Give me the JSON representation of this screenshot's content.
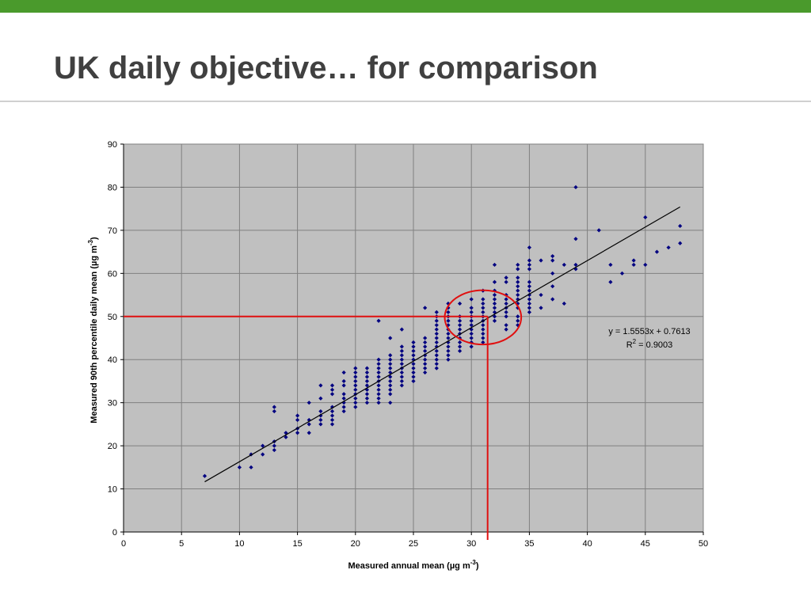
{
  "slide": {
    "title": "UK daily objective… for comparison",
    "accent_color": "#4a9a2c"
  },
  "chart_data": {
    "type": "scatter",
    "title": "",
    "xlabel": "Measured annual mean (µg m",
    "xlabel_sup": "-3",
    "xlabel_end": ")",
    "ylabel": "Measured 90th percentile daily mean (µg m",
    "ylabel_sup": "-3",
    "ylabel_end": ")",
    "xlim": [
      0,
      50
    ],
    "ylim": [
      0,
      90
    ],
    "xticks": [
      0,
      5,
      10,
      15,
      20,
      25,
      30,
      35,
      40,
      45,
      50
    ],
    "yticks": [
      0,
      10,
      20,
      30,
      40,
      50,
      60,
      70,
      80,
      90
    ],
    "grid": true,
    "plot_background": "#c0c0c0",
    "marker_color": "#000080",
    "trendline": {
      "equation": "y = 1.5553x + 0.7613",
      "r2_prefix": "R",
      "r2_sup": "2",
      "r2_suffix": " = 0.9003",
      "slope": 1.5553,
      "intercept": 0.7613,
      "x_range": [
        7,
        48
      ],
      "color": "#000000"
    },
    "annotations": {
      "horizontal_line_y": 50,
      "vertical_line_x": 31.4,
      "circle_center": [
        31,
        49.8
      ],
      "circle_radius_x": 3.3,
      "circle_radius_y": 6.3,
      "color": "#e01010"
    },
    "points": [
      [
        7,
        13
      ],
      [
        10,
        15
      ],
      [
        11,
        15
      ],
      [
        11,
        18
      ],
      [
        12,
        18
      ],
      [
        12,
        20
      ],
      [
        13,
        19
      ],
      [
        13,
        20
      ],
      [
        13,
        21
      ],
      [
        13,
        28
      ],
      [
        13,
        29
      ],
      [
        14,
        22
      ],
      [
        14,
        23
      ],
      [
        15,
        23
      ],
      [
        15,
        24
      ],
      [
        15,
        26
      ],
      [
        15,
        27
      ],
      [
        16,
        23
      ],
      [
        16,
        25
      ],
      [
        16,
        26
      ],
      [
        16,
        30
      ],
      [
        17,
        25
      ],
      [
        17,
        26
      ],
      [
        17,
        27
      ],
      [
        17,
        28
      ],
      [
        17,
        31
      ],
      [
        17,
        34
      ],
      [
        18,
        25
      ],
      [
        18,
        26
      ],
      [
        18,
        27
      ],
      [
        18,
        28
      ],
      [
        18,
        29
      ],
      [
        18,
        32
      ],
      [
        18,
        33
      ],
      [
        18,
        34
      ],
      [
        19,
        28
      ],
      [
        19,
        29
      ],
      [
        19,
        30
      ],
      [
        19,
        31
      ],
      [
        19,
        32
      ],
      [
        19,
        34
      ],
      [
        19,
        35
      ],
      [
        19,
        37
      ],
      [
        20,
        29
      ],
      [
        20,
        30
      ],
      [
        20,
        31
      ],
      [
        20,
        32
      ],
      [
        20,
        33
      ],
      [
        20,
        34
      ],
      [
        20,
        35
      ],
      [
        20,
        36
      ],
      [
        20,
        37
      ],
      [
        20,
        38
      ],
      [
        21,
        30
      ],
      [
        21,
        31
      ],
      [
        21,
        32
      ],
      [
        21,
        33
      ],
      [
        21,
        34
      ],
      [
        21,
        35
      ],
      [
        21,
        36
      ],
      [
        21,
        37
      ],
      [
        21,
        38
      ],
      [
        22,
        30
      ],
      [
        22,
        31
      ],
      [
        22,
        32
      ],
      [
        22,
        33
      ],
      [
        22,
        34
      ],
      [
        22,
        35
      ],
      [
        22,
        36
      ],
      [
        22,
        37
      ],
      [
        22,
        38
      ],
      [
        22,
        39
      ],
      [
        22,
        40
      ],
      [
        22,
        49
      ],
      [
        23,
        30
      ],
      [
        23,
        32
      ],
      [
        23,
        33
      ],
      [
        23,
        34
      ],
      [
        23,
        35
      ],
      [
        23,
        36
      ],
      [
        23,
        37
      ],
      [
        23,
        38
      ],
      [
        23,
        39
      ],
      [
        23,
        40
      ],
      [
        23,
        41
      ],
      [
        23,
        45
      ],
      [
        24,
        34
      ],
      [
        24,
        35
      ],
      [
        24,
        36
      ],
      [
        24,
        37
      ],
      [
        24,
        38
      ],
      [
        24,
        39
      ],
      [
        24,
        40
      ],
      [
        24,
        41
      ],
      [
        24,
        42
      ],
      [
        24,
        43
      ],
      [
        24,
        47
      ],
      [
        25,
        35
      ],
      [
        25,
        36
      ],
      [
        25,
        37
      ],
      [
        25,
        38
      ],
      [
        25,
        39
      ],
      [
        25,
        40
      ],
      [
        25,
        41
      ],
      [
        25,
        42
      ],
      [
        25,
        43
      ],
      [
        25,
        44
      ],
      [
        26,
        37
      ],
      [
        26,
        38
      ],
      [
        26,
        39
      ],
      [
        26,
        40
      ],
      [
        26,
        41
      ],
      [
        26,
        42
      ],
      [
        26,
        43
      ],
      [
        26,
        44
      ],
      [
        26,
        45
      ],
      [
        26,
        52
      ],
      [
        27,
        38
      ],
      [
        27,
        39
      ],
      [
        27,
        40
      ],
      [
        27,
        41
      ],
      [
        27,
        42
      ],
      [
        27,
        43
      ],
      [
        27,
        44
      ],
      [
        27,
        45
      ],
      [
        27,
        46
      ],
      [
        27,
        47
      ],
      [
        27,
        48
      ],
      [
        27,
        49
      ],
      [
        27,
        50
      ],
      [
        27,
        51
      ],
      [
        28,
        40
      ],
      [
        28,
        41
      ],
      [
        28,
        42
      ],
      [
        28,
        43
      ],
      [
        28,
        44
      ],
      [
        28,
        45
      ],
      [
        28,
        46
      ],
      [
        28,
        47
      ],
      [
        28,
        48
      ],
      [
        28,
        49
      ],
      [
        28,
        50
      ],
      [
        28,
        51
      ],
      [
        28,
        52
      ],
      [
        28,
        53
      ],
      [
        29,
        42
      ],
      [
        29,
        43
      ],
      [
        29,
        44
      ],
      [
        29,
        45
      ],
      [
        29,
        46
      ],
      [
        29,
        47
      ],
      [
        29,
        48
      ],
      [
        29,
        49
      ],
      [
        29,
        50
      ],
      [
        29,
        53
      ],
      [
        30,
        43
      ],
      [
        30,
        44
      ],
      [
        30,
        45
      ],
      [
        30,
        46
      ],
      [
        30,
        47
      ],
      [
        30,
        48
      ],
      [
        30,
        49
      ],
      [
        30,
        50
      ],
      [
        30,
        51
      ],
      [
        30,
        52
      ],
      [
        30,
        54
      ],
      [
        31,
        44
      ],
      [
        31,
        45
      ],
      [
        31,
        46
      ],
      [
        31,
        47
      ],
      [
        31,
        48
      ],
      [
        31,
        49
      ],
      [
        31,
        50
      ],
      [
        31,
        51
      ],
      [
        31,
        52
      ],
      [
        31,
        53
      ],
      [
        31,
        54
      ],
      [
        31,
        56
      ],
      [
        32,
        49
      ],
      [
        32,
        50
      ],
      [
        32,
        51
      ],
      [
        32,
        52
      ],
      [
        32,
        53
      ],
      [
        32,
        54
      ],
      [
        32,
        55
      ],
      [
        32,
        56
      ],
      [
        32,
        58
      ],
      [
        32,
        62
      ],
      [
        33,
        47
      ],
      [
        33,
        48
      ],
      [
        33,
        50
      ],
      [
        33,
        51
      ],
      [
        33,
        52
      ],
      [
        33,
        53
      ],
      [
        33,
        54
      ],
      [
        33,
        55
      ],
      [
        33,
        58
      ],
      [
        33,
        59
      ],
      [
        34,
        48
      ],
      [
        34,
        49
      ],
      [
        34,
        50
      ],
      [
        34,
        52
      ],
      [
        34,
        53
      ],
      [
        34,
        54
      ],
      [
        34,
        55
      ],
      [
        34,
        56
      ],
      [
        34,
        57
      ],
      [
        34,
        58
      ],
      [
        34,
        59
      ],
      [
        34,
        61
      ],
      [
        34,
        62
      ],
      [
        35,
        51
      ],
      [
        35,
        52
      ],
      [
        35,
        53
      ],
      [
        35,
        54
      ],
      [
        35,
        55
      ],
      [
        35,
        56
      ],
      [
        35,
        57
      ],
      [
        35,
        58
      ],
      [
        35,
        61
      ],
      [
        35,
        62
      ],
      [
        35,
        63
      ],
      [
        35,
        66
      ],
      [
        36,
        52
      ],
      [
        36,
        55
      ],
      [
        36,
        63
      ],
      [
        37,
        54
      ],
      [
        37,
        57
      ],
      [
        37,
        60
      ],
      [
        37,
        63
      ],
      [
        37,
        64
      ],
      [
        38,
        53
      ],
      [
        38,
        62
      ],
      [
        39,
        61
      ],
      [
        39,
        62
      ],
      [
        39,
        68
      ],
      [
        39,
        80
      ],
      [
        41,
        70
      ],
      [
        42,
        58
      ],
      [
        42,
        62
      ],
      [
        43,
        60
      ],
      [
        44,
        62
      ],
      [
        44,
        63
      ],
      [
        45,
        62
      ],
      [
        45,
        73
      ],
      [
        46,
        65
      ],
      [
        47,
        66
      ],
      [
        48,
        67
      ],
      [
        48,
        71
      ]
    ]
  }
}
